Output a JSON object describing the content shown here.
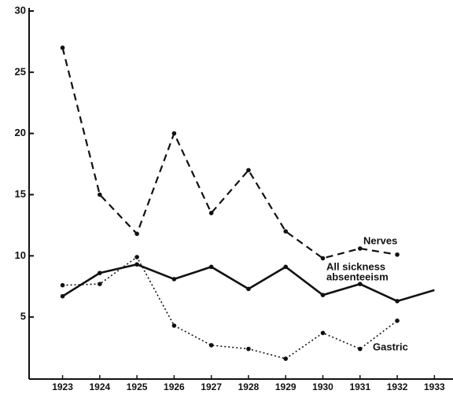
{
  "chart_data": {
    "type": "line",
    "x": [
      1923,
      1924,
      1925,
      1926,
      1927,
      1928,
      1929,
      1930,
      1931,
      1932,
      1933
    ],
    "series": [
      {
        "color": "#111111",
        "dash": "dashed",
        "values": [
          27,
          15,
          11.8,
          20,
          13.5,
          17,
          12,
          9.8,
          10.6,
          10.1,
          null
        ]
      },
      {
        "color": "#111111",
        "dash": "solid",
        "values": [
          6.7,
          8.6,
          9.3,
          8.1,
          9.1,
          7.3,
          9.1,
          6.8,
          7.7,
          6.3,
          7.2
        ]
      },
      {
        "color": "#111111",
        "dash": "dotted",
        "values": [
          7.6,
          7.7,
          9.9,
          4.3,
          2.7,
          2.4,
          1.6,
          3.7,
          2.4,
          4.7,
          null
        ]
      }
    ],
    "annotations": [
      "Nerves",
      "All sickness",
      "absenteeism",
      "Gastric"
    ],
    "xlim": [
      1922.1,
      1933.5
    ],
    "xticks": [
      1923,
      1924,
      1925,
      1926,
      1927,
      1928,
      1929,
      1930,
      1931,
      1932,
      1933
    ],
    "ylim": [
      0,
      30
    ],
    "yticks": [
      5,
      10,
      15,
      20,
      25,
      30
    ],
    "grid": false
  }
}
